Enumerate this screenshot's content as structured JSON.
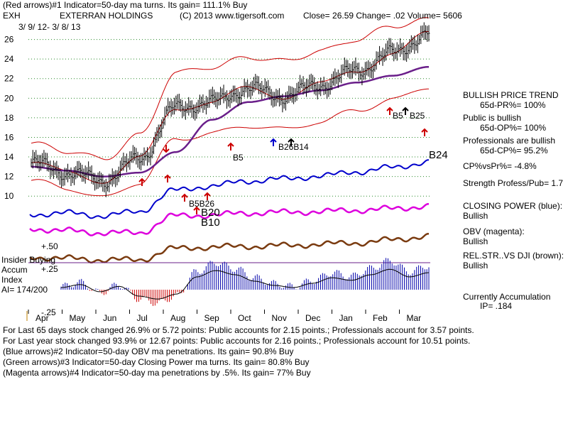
{
  "header": {
    "line1": "(Red arrows)#1 Indicator=50-day ma turns. Its gain= 111.1% Buy",
    "ticker": "EXH",
    "company": "EXTERRAN HOLDINGS",
    "copyright": "(C) 2013 www.tigersoft.com",
    "quote": "Close=  26.59  Change= .02 Volume=  5606",
    "date_range": "3/ 9/ 12-  3/ 8/ 13"
  },
  "side_panel": {
    "trend_title": "BULLISH PRICE TREND",
    "pr": "65d-PR%= 100%",
    "public_bullish": "Public is bullish",
    "op": "65d-OP%= 100%",
    "pros_bullish": "Professionals are bullish",
    "cp": "65d-CP%= 95.2%",
    "cpvspr": "CP%vsPr%= -4.8%",
    "strength": "Strength Profess/Pub= 1.7",
    "cp_label": "CLOSING POWER (blue):",
    "cp_value": "Bullish",
    "obv_label": "OBV (magenta):",
    "obv_value": "Bullish",
    "rel_label": "REL.STR..VS DJI (brown):",
    "rel_value": "Bullish",
    "accum_label": "Currently Accumulation",
    "ip": "IP=  .184"
  },
  "left_panel": {
    "insider": "Insider Buying",
    "accum": "Accum",
    "index": "Index",
    "ai": "AI= 174/200",
    "p50": "+.50",
    "p25": "+.25",
    "m25": "-.25"
  },
  "footer": {
    "line1": "For Last 65 days stock changed  26.9% or  5.72 points:  Public accounts for  2.15 points.;  Professionals account for  3.57 points.",
    "line2": "For Last year stock changed  93.9% or  12.67 points:  Public accounts for  2.16 points.;  Professionals account for  10.51 points.",
    "line3": "(Blue arrows)#2 Indicator=50-day OBV ma penetrations. Its gain= 90.8% Buy",
    "line4": "(Green arrows)#3 Indicator=50-day Closing Power ma turns. Its gain= 80.8% Buy",
    "line5": "(Magenta arrows)#4 Indicator=50-day ma penetrations by .5%. Its gain= 77% Buy"
  },
  "annotations": {
    "b5_mid": "B5",
    "b26_b14": "B26B14",
    "b5_right": "B5",
    "b25": "B25",
    "b5b26": "B5B26",
    "b20": "B20",
    "b10": "B10",
    "b24": "B24"
  },
  "colors": {
    "price": "#000000",
    "band": "#cc0000",
    "ma50": "#6a1f8a",
    "closing_power": "#0000cc",
    "obv": "#dd00dd",
    "relstr": "#7a3b10",
    "accum_pos": "#0000aa",
    "accum_neg": "#cc0000",
    "grid": "#2a8a2a"
  },
  "chart_data": {
    "type": "line",
    "title": "EXH EXTERRAN HOLDINGS",
    "xlabel": "",
    "ylabel": "",
    "x": [
      "Apr",
      "May",
      "Jun",
      "Jul",
      "Aug",
      "Sep",
      "Oct",
      "Nov",
      "Dec",
      "Jan",
      "Feb",
      "Mar"
    ],
    "yticks": [
      10,
      12,
      14,
      16,
      18,
      20,
      22,
      24,
      26
    ],
    "ylim": [
      9,
      28
    ],
    "series": [
      {
        "name": "Price (close)",
        "values": [
          13.4,
          12.4,
          11.6,
          13.8,
          19.0,
          19.6,
          21.0,
          20.2,
          21.4,
          22.8,
          24.6,
          26.59
        ]
      },
      {
        "name": "50-day MA",
        "values": [
          13.0,
          12.6,
          12.0,
          12.4,
          14.5,
          17.8,
          19.6,
          20.2,
          20.8,
          21.6,
          22.3,
          23.2
        ]
      },
      {
        "name": "Upper band",
        "values": [
          15.4,
          14.6,
          13.8,
          16.2,
          22.6,
          23.2,
          24.2,
          23.8,
          24.8,
          26.0,
          27.4,
          28.0
        ]
      },
      {
        "name": "Lower band",
        "values": [
          11.6,
          10.8,
          9.8,
          11.4,
          15.8,
          16.4,
          17.2,
          16.8,
          17.6,
          18.8,
          19.8,
          21.2
        ]
      }
    ],
    "accum_index": {
      "ylim": [
        -0.25,
        0.5
      ],
      "ticks": [
        0.5,
        0.25,
        -0.25
      ]
    },
    "annotations": [
      "B5",
      "B26B14",
      "B5",
      "B25",
      "B5B26",
      "B20",
      "B10",
      "B24"
    ]
  }
}
